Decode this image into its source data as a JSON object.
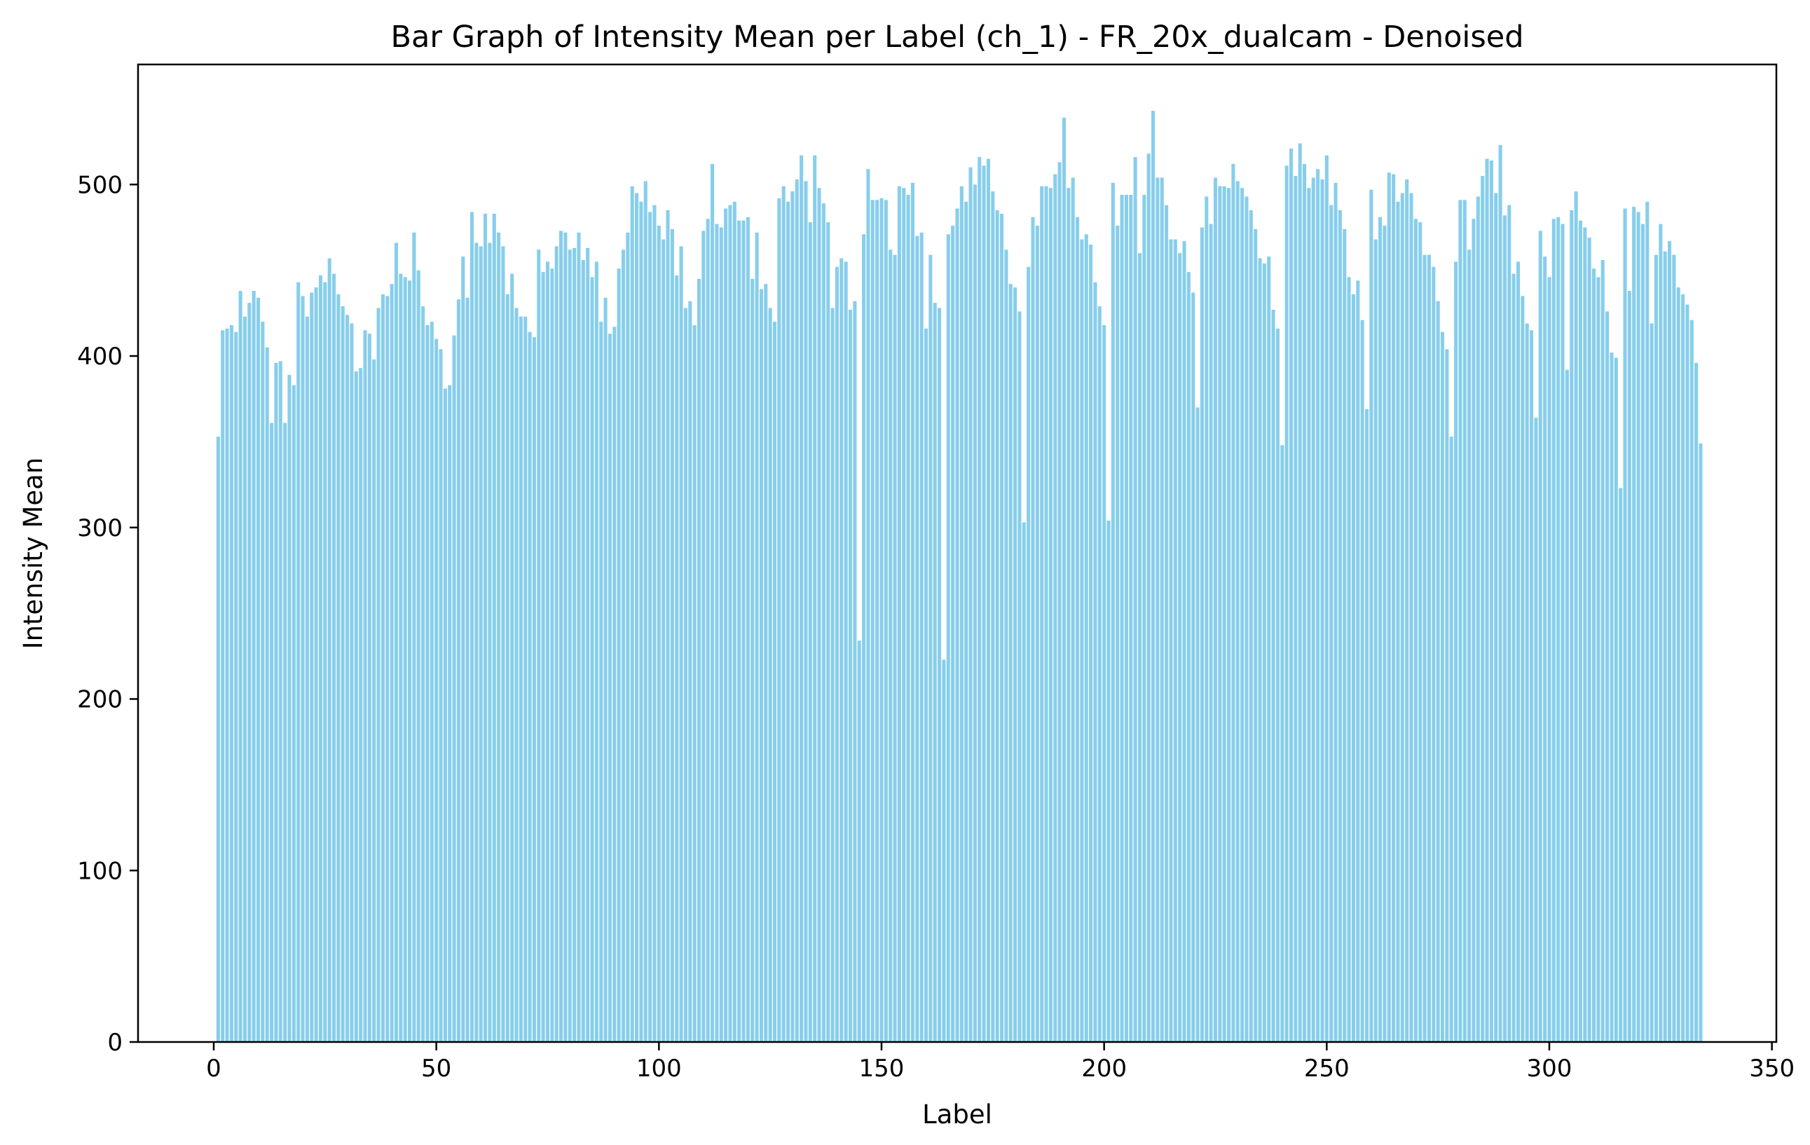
{
  "chart_data": {
    "type": "bar",
    "title": "Bar Graph of Intensity Mean per Label (ch_1) - FR_20x_dualcam - Denoised",
    "xlabel": "Label",
    "ylabel": "Intensity Mean",
    "xlim": [
      -17,
      351
    ],
    "ylim": [
      0,
      570
    ],
    "xticks": [
      0,
      50,
      100,
      150,
      200,
      250,
      300,
      350
    ],
    "yticks": [
      0,
      100,
      200,
      300,
      400,
      500
    ],
    "grid": false,
    "bar_color": "#87ceeb",
    "x_start": 1,
    "values": [
      353,
      415,
      416,
      418,
      414,
      438,
      423,
      431,
      438,
      434,
      420,
      405,
      361,
      396,
      397,
      361,
      389,
      383,
      443,
      435,
      423,
      437,
      440,
      447,
      443,
      457,
      448,
      436,
      429,
      424,
      419,
      391,
      393,
      415,
      413,
      398,
      428,
      436,
      435,
      442,
      466,
      448,
      446,
      444,
      472,
      450,
      429,
      418,
      420,
      410,
      404,
      381,
      383,
      412,
      433,
      458,
      434,
      484,
      466,
      464,
      483,
      466,
      483,
      472,
      464,
      436,
      448,
      428,
      423,
      423,
      414,
      411,
      462,
      449,
      455,
      451,
      464,
      473,
      472,
      462,
      463,
      472,
      456,
      463,
      446,
      455,
      420,
      434,
      413,
      417,
      451,
      462,
      472,
      499,
      495,
      490,
      502,
      484,
      488,
      476,
      468,
      485,
      474,
      447,
      464,
      428,
      432,
      418,
      445,
      473,
      480,
      512,
      477,
      475,
      486,
      488,
      490,
      479,
      479,
      481,
      445,
      472,
      439,
      442,
      428,
      420,
      492,
      499,
      490,
      496,
      503,
      517,
      502,
      478,
      517,
      498,
      489,
      478,
      428,
      452,
      457,
      455,
      427,
      432,
      234,
      471,
      509,
      491,
      491,
      492,
      491,
      462,
      459,
      499,
      498,
      494,
      501,
      470,
      472,
      416,
      459,
      431,
      428,
      223,
      471,
      476,
      486,
      499,
      490,
      510,
      500,
      516,
      511,
      515,
      496,
      485,
      483,
      462,
      442,
      440,
      426,
      303,
      452,
      481,
      476,
      499,
      499,
      498,
      506,
      513,
      539,
      498,
      504,
      481,
      468,
      471,
      465,
      443,
      429,
      418,
      304,
      501,
      476,
      494,
      494,
      494,
      516,
      460,
      494,
      518,
      543,
      504,
      504,
      488,
      468,
      468,
      460,
      467,
      449,
      437,
      370,
      475,
      493,
      477,
      504,
      499,
      499,
      498,
      512,
      502,
      498,
      493,
      485,
      474,
      457,
      454,
      458,
      427,
      416,
      348,
      511,
      521,
      505,
      524,
      512,
      498,
      504,
      509,
      503,
      517,
      488,
      501,
      485,
      474,
      446,
      436,
      444,
      421,
      369,
      497,
      468,
      481,
      476,
      507,
      506,
      490,
      495,
      503,
      495,
      480,
      478,
      459,
      459,
      452,
      432,
      414,
      404,
      353,
      455,
      491,
      491,
      462,
      480,
      493,
      505,
      515,
      514,
      495,
      523,
      482,
      488,
      448,
      455,
      435,
      419,
      415,
      364,
      473,
      458,
      446,
      480,
      481,
      477,
      392,
      485,
      496,
      479,
      475,
      469,
      451,
      446,
      456,
      426,
      402,
      399,
      323,
      486,
      438,
      487,
      484,
      477,
      490,
      419,
      459,
      477,
      461,
      467,
      459,
      440,
      436,
      430,
      421,
      396,
      349
    ]
  }
}
